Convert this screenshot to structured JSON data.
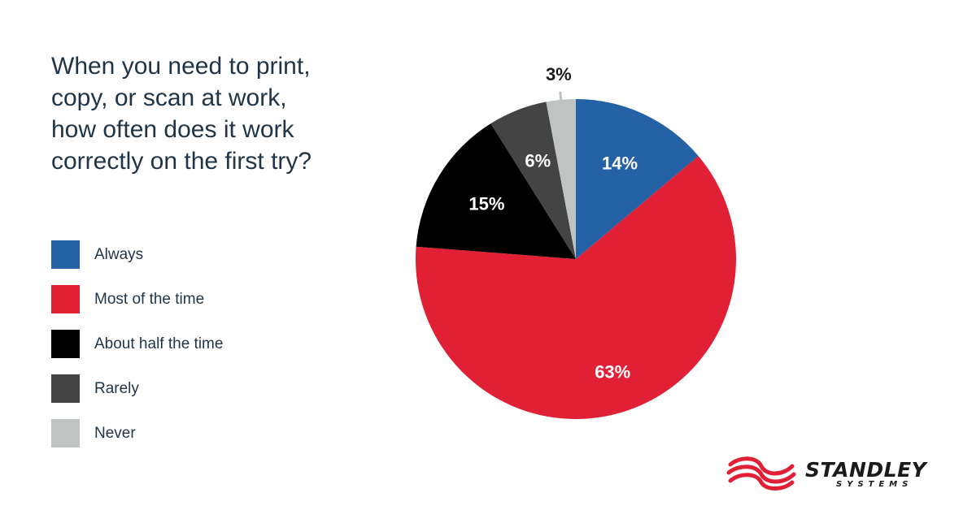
{
  "colors": {
    "always": "#2462a5",
    "most": "#e12036",
    "half": "#000000",
    "rarely": "#444444",
    "never": "#bfc4c3",
    "logo_red": "#e12036"
  },
  "chart_data": {
    "type": "pie",
    "title": "When you need to print, copy, or scan at work, how often does it work correctly on the first try?",
    "legend_position": "left",
    "slices": [
      {
        "label": "Always",
        "value": 14,
        "display": "14%",
        "color": "#2462a5",
        "label_color": "#ffffff"
      },
      {
        "label": "Most of the time",
        "value": 63,
        "display": "63%",
        "color": "#e12036",
        "label_color": "#ffffff"
      },
      {
        "label": "About half the time",
        "value": 15,
        "display": "15%",
        "color": "#000000",
        "label_color": "#ffffff"
      },
      {
        "label": "Rarely",
        "value": 6,
        "display": "6%",
        "color": "#444444",
        "label_color": "#ffffff"
      },
      {
        "label": "Never",
        "value": 3,
        "display": "3%",
        "color": "#bfc4c3",
        "label_color": "#1a1a1a"
      }
    ]
  },
  "logo": {
    "name": "STANDLEY",
    "tagline": "SYSTEMS",
    "icon": "standley-swirl-logo-icon"
  }
}
